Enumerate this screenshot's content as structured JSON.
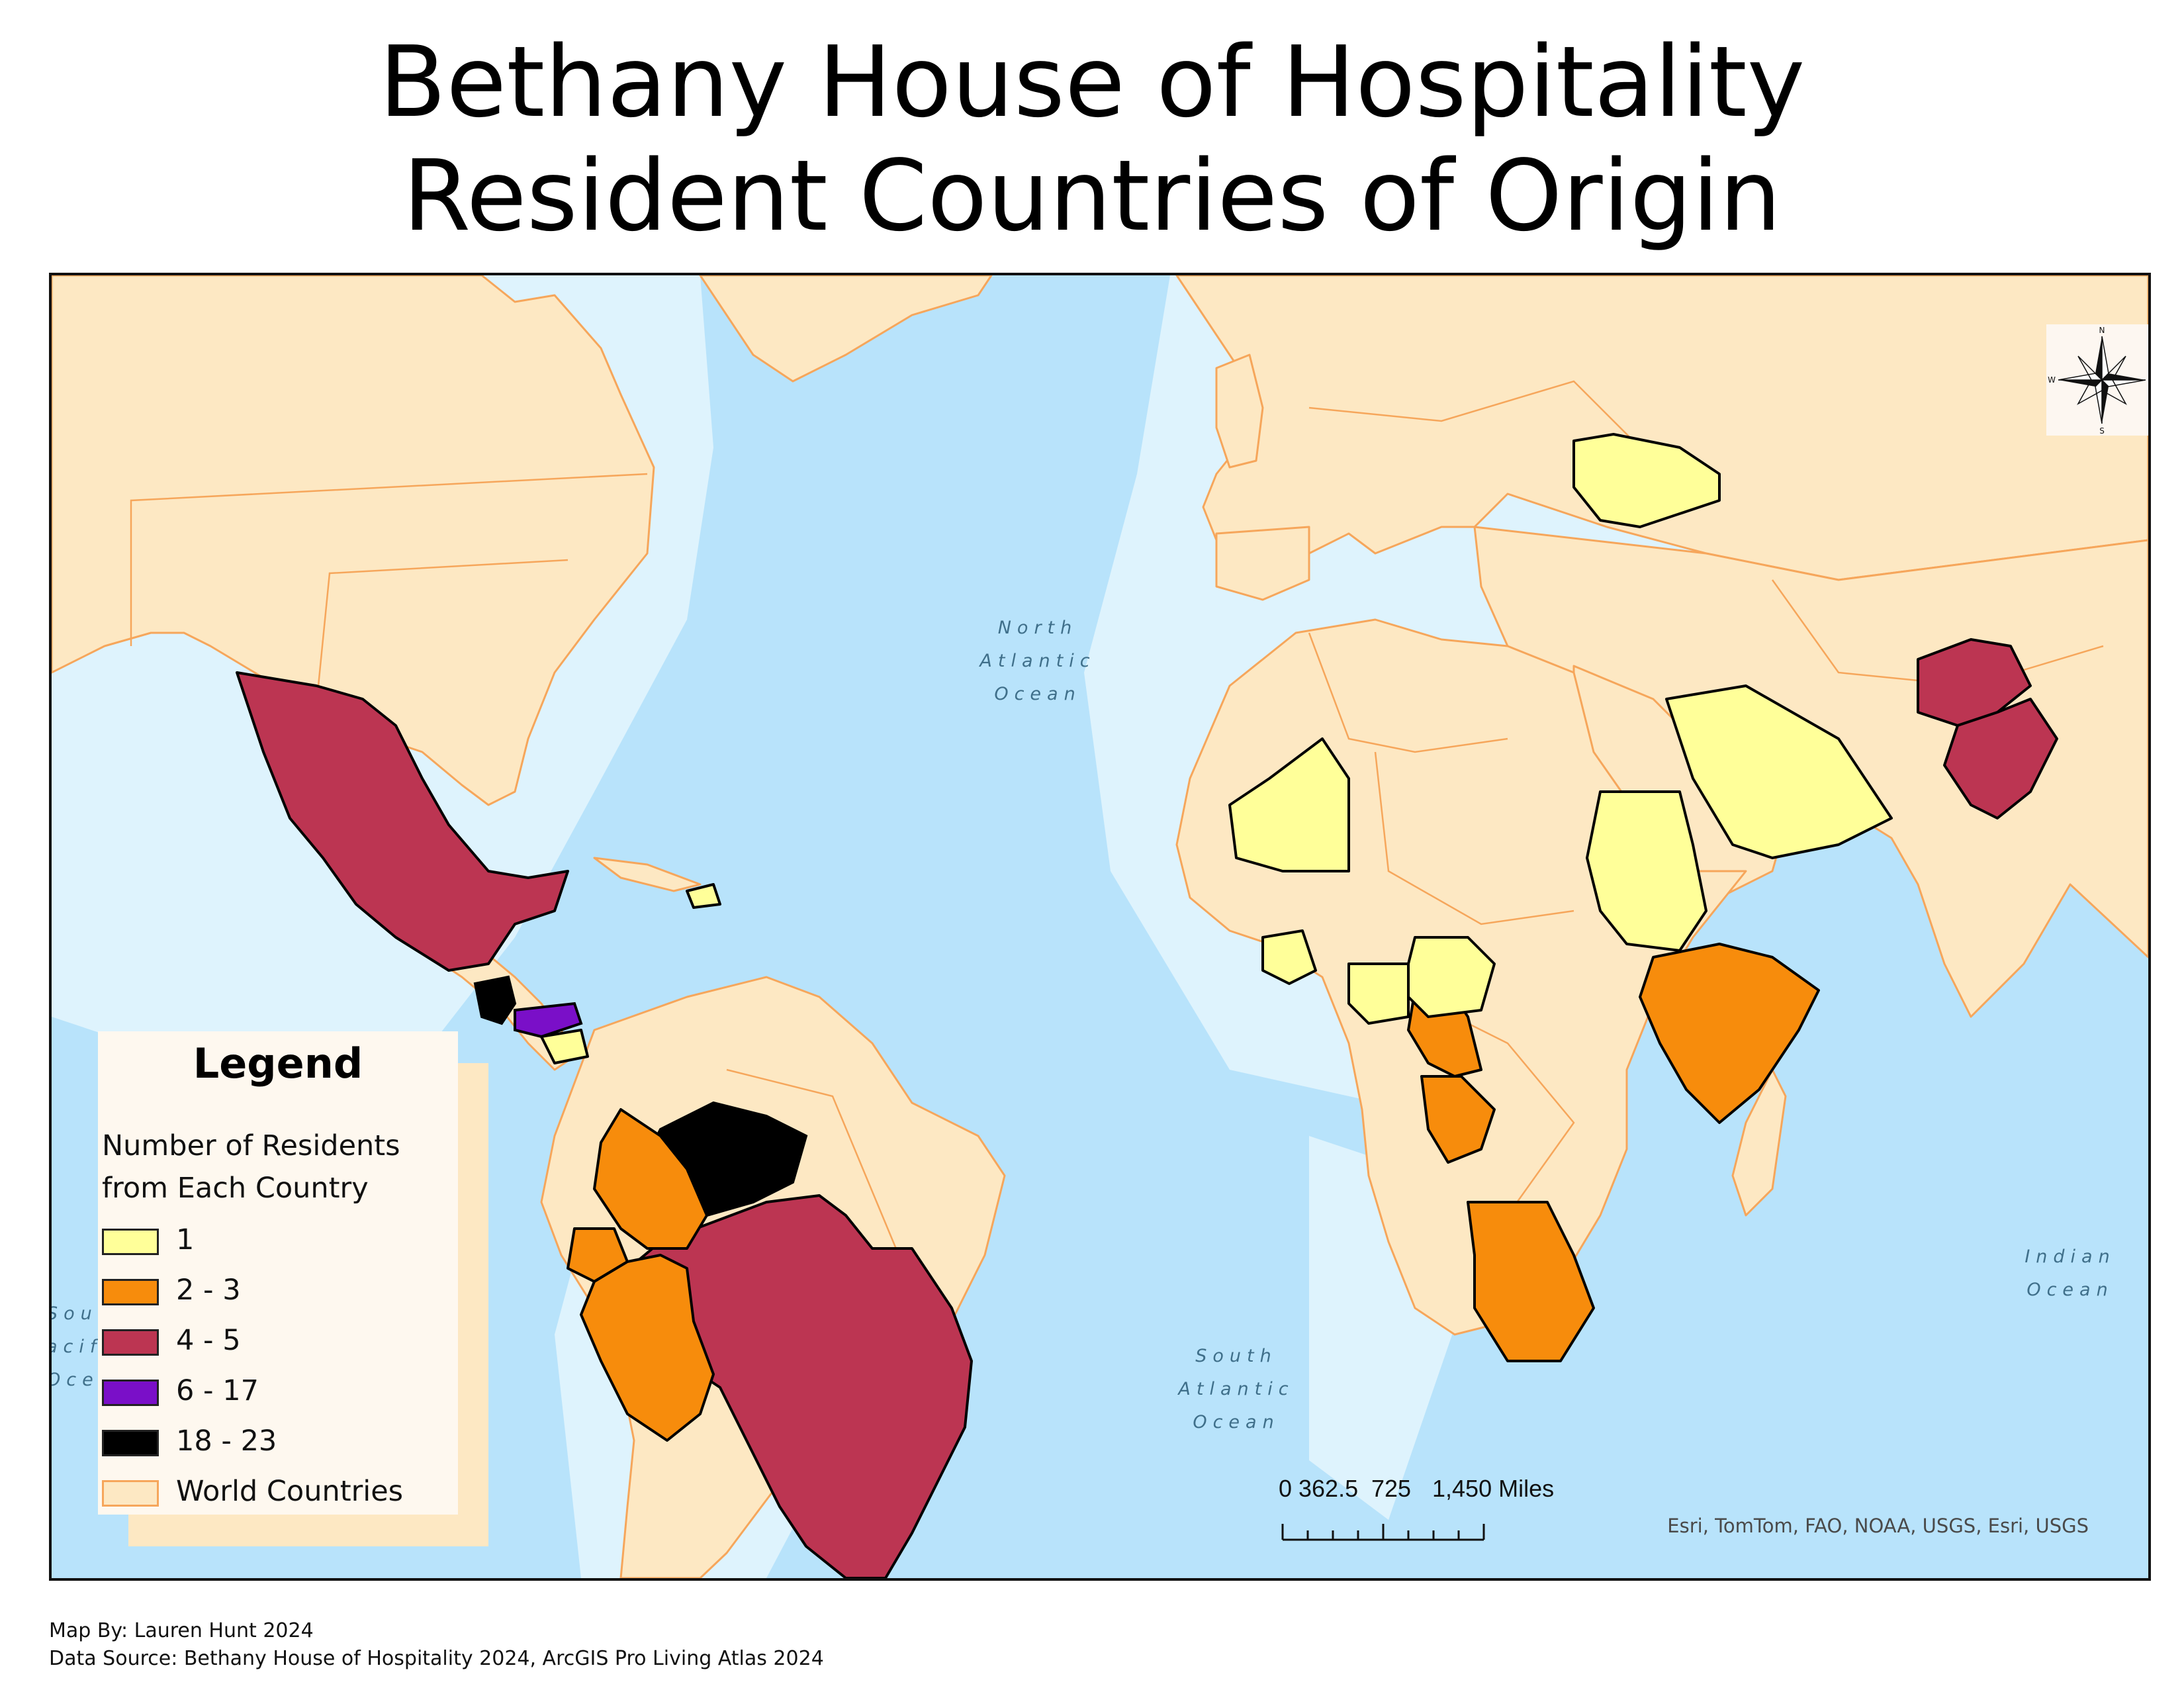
{
  "title": {
    "line1": "Bethany House of Hospitality",
    "line2": "Resident Countries of Origin"
  },
  "ocean_labels": {
    "north_atlantic": [
      "North",
      "Atlantic",
      "Ocean"
    ],
    "south_atlantic": [
      "South",
      "Atlantic",
      "Ocean"
    ],
    "indian": [
      "Indian",
      "Ocean"
    ],
    "south_pacific_partial": [
      "Sou",
      "acif",
      "Oce"
    ]
  },
  "legend": {
    "title": "Legend",
    "subtitle_line1": "Number of Residents",
    "subtitle_line2": "from Each Country",
    "classes": [
      {
        "label": "1",
        "color": "#ffff99"
      },
      {
        "label": "2 - 3",
        "color": "#f78c0c"
      },
      {
        "label": "4 - 5",
        "color": "#bc3552"
      },
      {
        "label": "6 - 17",
        "color": "#7a0fc8"
      },
      {
        "label": "18 - 23",
        "color": "#000000"
      }
    ],
    "base_layer": {
      "label": "World Countries",
      "color": "#fde8c3",
      "outline": "#f6a65b"
    }
  },
  "countries": {
    "class_18_23": [
      "Guatemala",
      "Venezuela"
    ],
    "class_6_17": [
      "Honduras"
    ],
    "class_4_5": [
      "Mexico",
      "Brazil",
      "Afghanistan",
      "Pakistan"
    ],
    "class_2_3": [
      "Colombia",
      "Ecuador",
      "Peru",
      "Ethiopia",
      "Somalia",
      "Cameroon",
      "Gabon",
      "Republic of the Congo",
      "Angola"
    ],
    "class_1": [
      "Nicaragua",
      "Dominican Republic",
      "Ukraine",
      "Saudi Arabia",
      "Mauritania",
      "Guinea",
      "Sierra Leone",
      "Côte d'Ivoire",
      "Ghana",
      "Togo",
      "Benin",
      "Nigeria",
      "Sudan"
    ]
  },
  "north_arrow": {
    "n": "N",
    "s": "S",
    "e": "E",
    "w": "W"
  },
  "scale_bar": {
    "labels": [
      "0",
      "362.5",
      "725",
      "1,450 Miles"
    ]
  },
  "attribution": "Esri, TomTom, FAO, NOAA, USGS, Esri, USGS",
  "footer": {
    "author": "Map By: Lauren Hunt 2024",
    "source": "Data Source: Bethany House of Hospitality 2024, ArcGIS Pro Living Atlas 2024"
  },
  "colors": {
    "ocean": "#b8e3fb",
    "shallow_ocean": "#def3fd",
    "land": "#fde8c3",
    "border": "#f6a65b"
  }
}
